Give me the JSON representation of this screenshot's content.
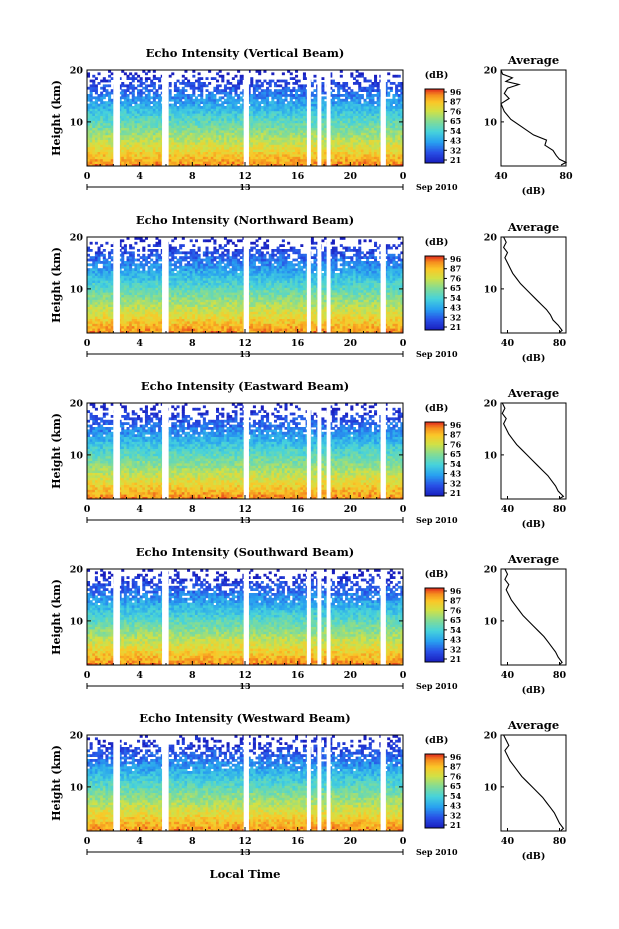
{
  "chart_data": [
    {
      "type": "heatmap",
      "title": "Echo Intensity (Vertical Beam)",
      "ylabel": "Height (km)",
      "x_ticks": [
        "0",
        "4",
        "8",
        "12",
        "16",
        "20",
        "0"
      ],
      "xlim": [
        0,
        24
      ],
      "y_ticks": [
        "20",
        "10"
      ],
      "ylim": [
        1.5,
        20
      ],
      "date_marker": "13",
      "date_label": "Sep 2010",
      "colorbar": {
        "unit": "(dB)",
        "ticks": [
          "96",
          "87",
          "76",
          "65",
          "54",
          "43",
          "32",
          "21"
        ],
        "range": [
          21,
          96
        ]
      },
      "data_gaps_hours": [
        [
          2.0,
          2.5
        ],
        [
          5.7,
          6.2
        ],
        [
          11.9,
          12.3
        ],
        [
          16.7,
          17.0
        ],
        [
          17.5,
          17.8
        ],
        [
          18.2,
          18.5
        ],
        [
          22.3,
          22.7
        ]
      ],
      "profile": {
        "title": "Average",
        "xlabel": "(dB)",
        "x_ticks": [
          "40",
          "80"
        ],
        "xlim": [
          40,
          80
        ],
        "y_ticks": [
          "20",
          "10"
        ],
        "points": [
          [
            38,
            20
          ],
          [
            41,
            19.2
          ],
          [
            47,
            18.5
          ],
          [
            43,
            17.8
          ],
          [
            51,
            17.2
          ],
          [
            44,
            16.5
          ],
          [
            42,
            15.5
          ],
          [
            45,
            14.5
          ],
          [
            40,
            13.5
          ],
          [
            42,
            12
          ],
          [
            46,
            10.5
          ],
          [
            53,
            9
          ],
          [
            60,
            7.5
          ],
          [
            68,
            6.5
          ],
          [
            67,
            5.5
          ],
          [
            72,
            4.5
          ],
          [
            74,
            3.5
          ],
          [
            76,
            2.8
          ],
          [
            82,
            2.2
          ],
          [
            77,
            1.7
          ]
        ]
      }
    },
    {
      "type": "heatmap",
      "title": "Echo Intensity (Northward Beam)",
      "ylabel": "Height (km)",
      "x_ticks": [
        "0",
        "4",
        "8",
        "12",
        "16",
        "20",
        "0"
      ],
      "xlim": [
        0,
        24
      ],
      "y_ticks": [
        "20",
        "10"
      ],
      "ylim": [
        1.5,
        20
      ],
      "date_marker": "13",
      "date_label": "Sep 2010",
      "colorbar": {
        "unit": "(dB)",
        "ticks": [
          "96",
          "87",
          "76",
          "65",
          "54",
          "43",
          "32",
          "21"
        ],
        "range": [
          21,
          96
        ]
      },
      "data_gaps_hours": [
        [
          2.0,
          2.5
        ],
        [
          5.7,
          6.2
        ],
        [
          11.9,
          12.3
        ],
        [
          16.7,
          17.0
        ],
        [
          17.5,
          17.8
        ],
        [
          18.2,
          18.5
        ],
        [
          22.3,
          22.7
        ]
      ],
      "profile": {
        "title": "Average",
        "xlabel": "(dB)",
        "x_ticks": [
          "40",
          "80"
        ],
        "xlim": [
          35,
          85
        ],
        "y_ticks": [
          "20",
          "10"
        ],
        "points": [
          [
            37,
            20
          ],
          [
            39,
            19
          ],
          [
            37,
            18
          ],
          [
            40,
            17
          ],
          [
            38,
            16
          ],
          [
            40,
            15
          ],
          [
            42,
            14
          ],
          [
            44,
            13
          ],
          [
            47,
            12
          ],
          [
            50,
            11
          ],
          [
            54,
            10
          ],
          [
            58,
            9
          ],
          [
            62,
            8
          ],
          [
            66,
            7
          ],
          [
            70,
            6
          ],
          [
            73,
            5
          ],
          [
            75,
            4
          ],
          [
            79,
            3
          ],
          [
            82,
            2
          ],
          [
            80,
            1.6
          ]
        ]
      }
    },
    {
      "type": "heatmap",
      "title": "Echo Intensity (Eastward Beam)",
      "ylabel": "Height (km)",
      "x_ticks": [
        "0",
        "4",
        "8",
        "12",
        "16",
        "20",
        "0"
      ],
      "xlim": [
        0,
        24
      ],
      "y_ticks": [
        "20",
        "10"
      ],
      "ylim": [
        1.5,
        20
      ],
      "date_marker": "13",
      "date_label": "Sep 2010",
      "colorbar": {
        "unit": "(dB)",
        "ticks": [
          "96",
          "87",
          "76",
          "65",
          "54",
          "43",
          "32",
          "21"
        ],
        "range": [
          21,
          96
        ]
      },
      "data_gaps_hours": [
        [
          2.0,
          2.5
        ],
        [
          5.7,
          6.2
        ],
        [
          11.9,
          12.3
        ],
        [
          16.7,
          17.0
        ],
        [
          17.5,
          17.8
        ],
        [
          18.2,
          18.5
        ],
        [
          22.3,
          22.7
        ]
      ],
      "profile": {
        "title": "Average",
        "xlabel": "(dB)",
        "x_ticks": [
          "40",
          "80"
        ],
        "xlim": [
          35,
          85
        ],
        "y_ticks": [
          "20",
          "10"
        ],
        "points": [
          [
            36,
            20
          ],
          [
            38,
            19
          ],
          [
            36,
            18
          ],
          [
            39,
            17
          ],
          [
            37,
            16
          ],
          [
            39,
            15
          ],
          [
            41,
            14
          ],
          [
            44,
            13
          ],
          [
            47,
            12
          ],
          [
            51,
            11
          ],
          [
            55,
            10
          ],
          [
            59,
            9
          ],
          [
            63,
            8
          ],
          [
            67,
            7
          ],
          [
            71,
            6
          ],
          [
            74,
            5
          ],
          [
            77,
            4
          ],
          [
            79,
            3
          ],
          [
            83,
            2
          ],
          [
            80,
            1.6
          ]
        ]
      }
    },
    {
      "type": "heatmap",
      "title": "Echo Intensity (Southward Beam)",
      "ylabel": "Height (km)",
      "x_ticks": [
        "0",
        "4",
        "8",
        "12",
        "16",
        "20",
        "0"
      ],
      "xlim": [
        0,
        24
      ],
      "y_ticks": [
        "20",
        "10"
      ],
      "ylim": [
        1.5,
        20
      ],
      "date_marker": "13",
      "date_label": "Sep 2010",
      "colorbar": {
        "unit": "(dB)",
        "ticks": [
          "96",
          "87",
          "76",
          "65",
          "54",
          "43",
          "32",
          "21"
        ],
        "range": [
          21,
          96
        ]
      },
      "data_gaps_hours": [
        [
          2.0,
          2.5
        ],
        [
          5.7,
          6.2
        ],
        [
          11.9,
          12.3
        ],
        [
          16.7,
          17.0
        ],
        [
          17.5,
          17.8
        ],
        [
          18.2,
          18.5
        ],
        [
          22.3,
          22.7
        ]
      ],
      "profile": {
        "title": "Average",
        "xlabel": "(dB)",
        "x_ticks": [
          "40",
          "80"
        ],
        "xlim": [
          35,
          85
        ],
        "y_ticks": [
          "20",
          "10"
        ],
        "points": [
          [
            38,
            20
          ],
          [
            40,
            19
          ],
          [
            38,
            18
          ],
          [
            41,
            17
          ],
          [
            39,
            16
          ],
          [
            41,
            15
          ],
          [
            43,
            14
          ],
          [
            46,
            13
          ],
          [
            49,
            12
          ],
          [
            52,
            11
          ],
          [
            56,
            10
          ],
          [
            60,
            9
          ],
          [
            64,
            8
          ],
          [
            68,
            7
          ],
          [
            71,
            6
          ],
          [
            74,
            5
          ],
          [
            77,
            4
          ],
          [
            79,
            3
          ],
          [
            82,
            2
          ],
          [
            80,
            1.6
          ]
        ]
      }
    },
    {
      "type": "heatmap",
      "title": "Echo Intensity (Westward Beam)",
      "ylabel": "Height (km)",
      "x_ticks": [
        "0",
        "4",
        "8",
        "12",
        "16",
        "20",
        "0"
      ],
      "xlim": [
        0,
        24
      ],
      "y_ticks": [
        "20",
        "10"
      ],
      "ylim": [
        1.5,
        20
      ],
      "date_marker": "13",
      "date_label": "Sep 2010",
      "colorbar": {
        "unit": "(dB)",
        "ticks": [
          "96",
          "87",
          "76",
          "65",
          "54",
          "43",
          "32",
          "21"
        ],
        "range": [
          21,
          96
        ]
      },
      "data_gaps_hours": [
        [
          2.0,
          2.5
        ],
        [
          5.7,
          6.2
        ],
        [
          11.9,
          12.3
        ],
        [
          16.7,
          17.0
        ],
        [
          17.5,
          17.8
        ],
        [
          18.2,
          18.5
        ],
        [
          22.3,
          22.7
        ]
      ],
      "profile": {
        "title": "Average",
        "xlabel": "(dB)",
        "x_ticks": [
          "40",
          "80"
        ],
        "xlim": [
          35,
          85
        ],
        "y_ticks": [
          "20",
          "10"
        ],
        "points": [
          [
            37,
            20
          ],
          [
            39,
            19
          ],
          [
            41,
            18
          ],
          [
            38,
            17
          ],
          [
            40,
            16
          ],
          [
            42,
            15
          ],
          [
            45,
            14
          ],
          [
            48,
            13
          ],
          [
            51,
            12
          ],
          [
            55,
            11
          ],
          [
            59,
            10
          ],
          [
            63,
            9
          ],
          [
            67,
            8
          ],
          [
            70,
            7
          ],
          [
            73,
            6
          ],
          [
            76,
            5
          ],
          [
            78,
            4
          ],
          [
            80,
            3
          ],
          [
            83,
            2
          ],
          [
            81,
            1.6
          ]
        ]
      }
    }
  ],
  "xlabel": "Local Time"
}
